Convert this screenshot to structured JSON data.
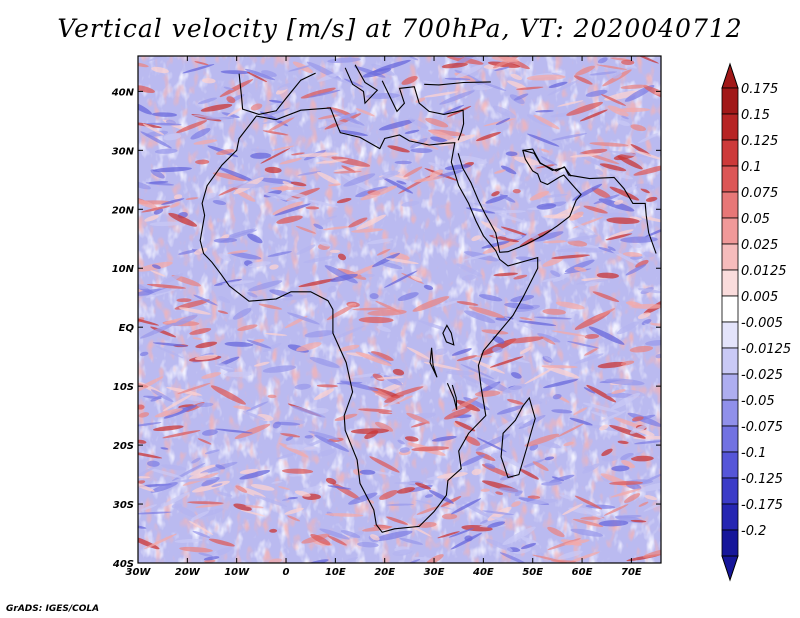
{
  "title": "Vertical velocity [m/s] at 700hPa, VT: 2020040712",
  "credit": "GrADS: IGES/COLA",
  "map": {
    "lon_range": [
      -30,
      76
    ],
    "lat_range": [
      -40,
      46
    ],
    "lat_ticks": [
      {
        "value": 40,
        "label": "40N"
      },
      {
        "value": 30,
        "label": "30N"
      },
      {
        "value": 20,
        "label": "20N"
      },
      {
        "value": 10,
        "label": "10N"
      },
      {
        "value": 0,
        "label": "EQ"
      },
      {
        "value": -10,
        "label": "10S"
      },
      {
        "value": -20,
        "label": "20S"
      },
      {
        "value": -30,
        "label": "30S"
      },
      {
        "value": -40,
        "label": "40S"
      }
    ],
    "lon_ticks": [
      {
        "value": -30,
        "label": "30W"
      },
      {
        "value": -20,
        "label": "20W"
      },
      {
        "value": -10,
        "label": "10W"
      },
      {
        "value": 0,
        "label": "0"
      },
      {
        "value": 10,
        "label": "10E"
      },
      {
        "value": 20,
        "label": "20E"
      },
      {
        "value": 30,
        "label": "30E"
      },
      {
        "value": 40,
        "label": "40E"
      },
      {
        "value": 50,
        "label": "50E"
      },
      {
        "value": 60,
        "label": "60E"
      },
      {
        "value": 70,
        "label": "70E"
      }
    ]
  },
  "colorbar": {
    "levels": [
      {
        "label": "0.175",
        "color": "#a11818"
      },
      {
        "label": "0.15",
        "color": "#b72424"
      },
      {
        "label": "0.125",
        "color": "#cd3a3a"
      },
      {
        "label": "0.1",
        "color": "#dc5656"
      },
      {
        "label": "0.075",
        "color": "#e77777"
      },
      {
        "label": "0.05",
        "color": "#f09999"
      },
      {
        "label": "0.025",
        "color": "#f6bcbc"
      },
      {
        "label": "0.0125",
        "color": "#fadcdc"
      },
      {
        "label": "0.005",
        "color": "#ffffff"
      },
      {
        "label": "-0.005",
        "color": "#e4e4fb"
      },
      {
        "label": "-0.0125",
        "color": "#cacaf6"
      },
      {
        "label": "-0.025",
        "color": "#aeaef0"
      },
      {
        "label": "-0.05",
        "color": "#9090ea"
      },
      {
        "label": "-0.075",
        "color": "#7272e2"
      },
      {
        "label": "-0.1",
        "color": "#5656d8"
      },
      {
        "label": "-0.125",
        "color": "#3c3cc8"
      },
      {
        "label": "-0.175",
        "color": "#2626b2"
      },
      {
        "label": "-0.2",
        "color": "#16169a"
      }
    ],
    "top_color": "#a11818",
    "bottom_color": "#16169a"
  },
  "colors": {
    "background_field": "#dcdcf6",
    "positive": "#e06666",
    "negative": "#6b6be0",
    "coast": "#000000"
  }
}
